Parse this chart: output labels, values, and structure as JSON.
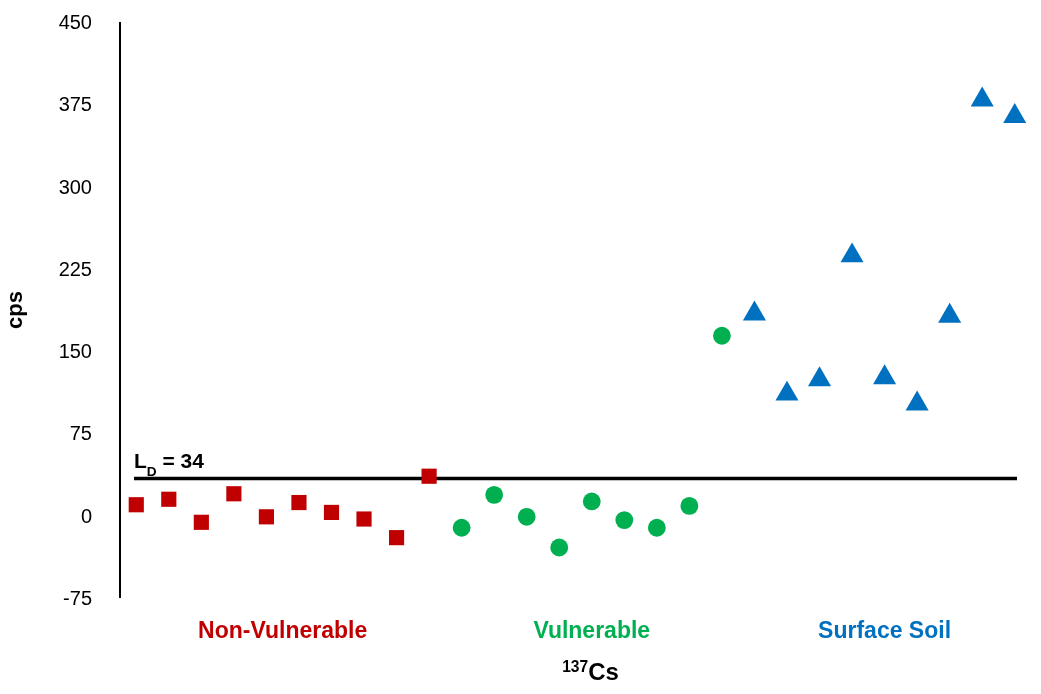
{
  "chart_data": {
    "type": "scatter",
    "xlabel": "$^{137}$Cs",
    "ylabel": "cps",
    "categories": [
      null,
      null,
      null,
      null,
      null,
      null,
      null,
      null,
      null,
      null,
      null,
      null,
      null,
      null,
      null,
      null,
      null,
      null,
      null,
      null,
      null,
      null,
      null,
      null,
      null,
      null,
      null,
      null
    ],
    "ylim": [
      -75,
      450
    ],
    "yticks": [
      -75,
      0,
      75,
      150,
      225,
      300,
      375,
      450
    ],
    "grid": false,
    "series": [
      {
        "name": "Non-Vulnerable",
        "color": "#c00000",
        "marker": "square",
        "values": [
          10,
          15,
          -6,
          20,
          -1,
          12,
          3,
          -3,
          -20,
          36,
          null,
          null,
          null,
          null,
          null,
          null,
          null,
          null,
          null,
          null,
          null,
          null,
          null,
          null,
          null,
          null,
          null,
          null
        ]
      },
      {
        "name": "Vulnerable",
        "color": "#00b050",
        "marker": "circle",
        "values": [
          null,
          null,
          null,
          null,
          null,
          null,
          null,
          null,
          null,
          null,
          -11,
          19,
          -1,
          -29,
          13,
          -4,
          -11,
          9,
          164,
          null,
          null,
          null,
          null,
          null,
          null,
          null,
          null,
          null
        ]
      },
      {
        "name": "Surface Soil",
        "color": "#0070c0",
        "marker": "triangle",
        "values": [
          null,
          null,
          null,
          null,
          null,
          null,
          null,
          null,
          null,
          null,
          null,
          null,
          null,
          null,
          null,
          null,
          null,
          null,
          null,
          184,
          111,
          124,
          237,
          126,
          102,
          182,
          379,
          364
        ]
      }
    ],
    "ref_lines": [
      {
        "axis": "y",
        "value": 34,
        "label": "L$_{D}$ = 34",
        "color": "#000000"
      }
    ]
  }
}
